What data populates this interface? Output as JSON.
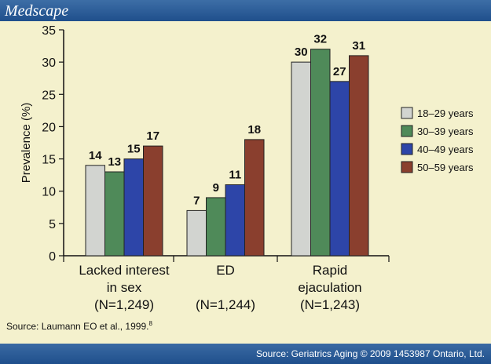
{
  "header": {
    "logo_text": "Medscape"
  },
  "source_note": {
    "text": "Source: Laumann EO et al., 1999.",
    "superscript": "8"
  },
  "footer": {
    "text": "Source: Geriatrics Aging © 2009 1453987 Ontario, Ltd."
  },
  "chart_data": {
    "type": "bar",
    "ylabel": "Prevalence (%)",
    "ylim": [
      0,
      35
    ],
    "yticks": [
      "0",
      "5",
      "10",
      "15",
      "20",
      "25",
      "30",
      "35"
    ],
    "grid": false,
    "legend_position": "right",
    "categories": [
      {
        "line1": "Lacked interest",
        "line2": "in sex",
        "line3": "(N=1,249)"
      },
      {
        "line1": "ED",
        "line2": "",
        "line3": "(N=1,244)"
      },
      {
        "line1": "Rapid",
        "line2": "ejaculation",
        "line3": "(N=1,243)"
      }
    ],
    "series": [
      {
        "name": "18–29 years",
        "color": "#d2d4d0",
        "values": [
          14,
          7,
          30
        ]
      },
      {
        "name": "30–39 years",
        "color": "#4f8a59",
        "values": [
          13,
          9,
          32
        ]
      },
      {
        "name": "40–49 years",
        "color": "#2d45a8",
        "values": [
          15,
          11,
          27
        ]
      },
      {
        "name": "50–59 years",
        "color": "#8a3f2e",
        "values": [
          17,
          18,
          31
        ]
      }
    ]
  }
}
